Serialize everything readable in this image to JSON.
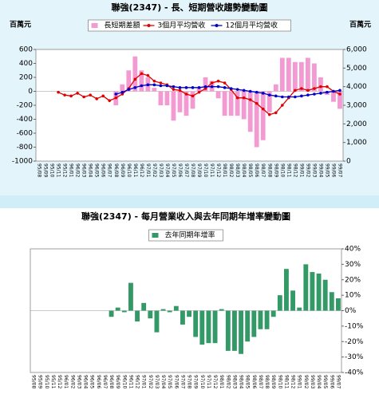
{
  "chart_data": [
    {
      "type": "combo",
      "title": "聯強(2347) - 長、短期營收趨勢變動圖",
      "y_label": "百萬元",
      "y2_label": "百萬元",
      "categories": [
        "95/08",
        "95/09",
        "95/10",
        "95/11",
        "95/12",
        "96/01",
        "96/02",
        "96/03",
        "96/04",
        "96/05",
        "96/06",
        "96/07",
        "96/08",
        "96/09",
        "96/10",
        "96/11",
        "96/12",
        "97/01",
        "97/02",
        "97/03",
        "97/04",
        "97/05",
        "97/06",
        "97/07",
        "97/08",
        "97/09",
        "97/10",
        "97/11",
        "97/12",
        "98/01",
        "98/02",
        "98/03",
        "98/04",
        "98/05",
        "98/06",
        "98/07",
        "98/08",
        "98/09",
        "98/10",
        "98/11",
        "98/12",
        "99/01",
        "99/02",
        "99/03",
        "99/04",
        "99/05",
        "99/06",
        "99/07"
      ],
      "ylim": [
        -1000,
        600
      ],
      "yticks": [
        -1000,
        -800,
        -600,
        -400,
        -200,
        0,
        200,
        400,
        600
      ],
      "y2lim": [
        0,
        6000
      ],
      "y2ticks": [
        0,
        {
          "value": 1000,
          "label": "1,000"
        },
        {
          "value": 2000,
          "label": "2,000"
        },
        {
          "value": 3000,
          "label": "3,000"
        },
        {
          "value": 4000,
          "label": "4,000"
        },
        {
          "value": 5000,
          "label": "5,000"
        },
        {
          "value": 6000,
          "label": "6,000"
        }
      ],
      "series": [
        {
          "name": "長短期差額",
          "type": "bar",
          "axis": "y",
          "color": "#f49ad2",
          "values": [
            null,
            null,
            null,
            null,
            null,
            null,
            null,
            null,
            null,
            null,
            null,
            null,
            -200,
            100,
            300,
            500,
            300,
            200,
            50,
            -200,
            -200,
            -420,
            -300,
            -350,
            -250,
            50,
            200,
            150,
            -100,
            -350,
            -350,
            -350,
            -400,
            -580,
            -800,
            -700,
            -300,
            100,
            480,
            480,
            420,
            420,
            480,
            400,
            200,
            -50,
            -150,
            -250
          ]
        },
        {
          "name": "3個月平均營收",
          "type": "line",
          "axis": "y2",
          "color": "#e00000",
          "values": [
            null,
            null,
            null,
            3700,
            3550,
            3500,
            3650,
            3450,
            3550,
            3350,
            3500,
            3250,
            3400,
            3600,
            3900,
            4400,
            4700,
            4600,
            4300,
            4200,
            4100,
            3850,
            3800,
            3600,
            3500,
            3700,
            3900,
            4200,
            4300,
            4200,
            3850,
            3400,
            3400,
            3300,
            3100,
            2800,
            2500,
            2600,
            3000,
            3400,
            3800,
            3900,
            3800,
            3900,
            4000,
            4000,
            3750,
            3600
          ]
        },
        {
          "name": "12個月平均營收",
          "type": "line",
          "axis": "y2",
          "color": "#0000c8",
          "values": [
            null,
            null,
            null,
            null,
            null,
            null,
            null,
            null,
            null,
            null,
            null,
            null,
            3600,
            3700,
            3850,
            3950,
            4050,
            4100,
            4100,
            4050,
            4050,
            4000,
            3950,
            3950,
            3950,
            3950,
            4000,
            4000,
            4000,
            3950,
            3900,
            3850,
            3800,
            3750,
            3700,
            3650,
            3550,
            3500,
            3450,
            3450,
            3450,
            3500,
            3550,
            3600,
            3650,
            3700,
            3750,
            3800
          ]
        }
      ]
    },
    {
      "type": "bar",
      "title": "聯強(2347) - 每月營業收入與去年同期年增率變動圖",
      "categories": [
        "95/08",
        "95/09",
        "95/10",
        "95/11",
        "95/12",
        "96/01",
        "96/02",
        "96/03",
        "96/04",
        "96/05",
        "96/06",
        "96/07",
        "96/08",
        "96/09",
        "96/10",
        "96/11",
        "96/12",
        "97/01",
        "97/02",
        "97/03",
        "97/04",
        "97/05",
        "97/06",
        "97/07",
        "97/08",
        "97/09",
        "97/10",
        "97/11",
        "97/12",
        "98/01",
        "98/02",
        "98/03",
        "98/04",
        "98/05",
        "98/06",
        "98/07",
        "98/08",
        "98/09",
        "98/10",
        "98/11",
        "98/12",
        "99/01",
        "99/02",
        "99/03",
        "99/04",
        "99/05",
        "99/06",
        "99/07"
      ],
      "y2lim": [
        -40,
        40
      ],
      "y2ticks": [
        {
          "value": -40,
          "label": "-40%"
        },
        {
          "value": -30,
          "label": "-30%"
        },
        {
          "value": -20,
          "label": "-20%"
        },
        {
          "value": -10,
          "label": "-10%"
        },
        {
          "value": 0,
          "label": "0%"
        },
        {
          "value": 10,
          "label": "10%"
        },
        {
          "value": 20,
          "label": "20%"
        },
        {
          "value": 30,
          "label": "30%"
        },
        {
          "value": 40,
          "label": "40%"
        }
      ],
      "series": [
        {
          "name": "去年同期年增率",
          "type": "bar",
          "axis": "y2",
          "color": "#339966",
          "values": [
            null,
            null,
            null,
            null,
            null,
            null,
            null,
            null,
            null,
            null,
            null,
            null,
            -4,
            2,
            -1,
            18,
            -7,
            5,
            -5,
            -14,
            1,
            -1,
            3,
            -9,
            -4,
            -17,
            -22,
            -21,
            -21,
            1,
            -26,
            -26,
            -28,
            -20,
            -17,
            -12,
            -12,
            -4,
            10,
            27,
            13,
            2,
            30,
            25,
            24,
            20,
            12,
            8
          ]
        }
      ]
    }
  ]
}
